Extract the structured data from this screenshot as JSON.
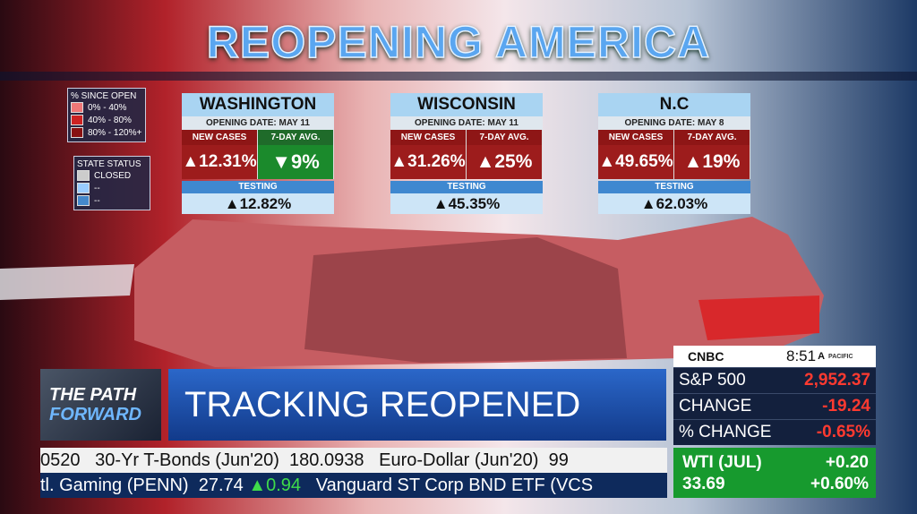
{
  "header": {
    "title": "REOPENING AMERICA"
  },
  "legend": {
    "title": "% SINCE OPEN",
    "items": [
      "0% - 40%",
      "40% - 80%",
      "80% - 120%+"
    ]
  },
  "status_legend": {
    "title": "STATE STATUS",
    "items": [
      "CLOSED",
      "--",
      "--"
    ]
  },
  "cards": [
    {
      "state": "WASHINGTON",
      "opening_date": "OPENING DATE: MAY 11",
      "new_cases_label": "NEW CASES",
      "new_cases": "▲12.31%",
      "avg_label": "7-DAY AVG.",
      "avg": "▼9%",
      "testing_label": "TESTING",
      "testing": "▲12.82%"
    },
    {
      "state": "WISCONSIN",
      "opening_date": "OPENING DATE: MAY 11",
      "new_cases_label": "NEW CASES",
      "new_cases": "▲31.26%",
      "avg_label": "7-DAY AVG.",
      "avg": "▲25%",
      "testing_label": "TESTING",
      "testing": "▲45.35%"
    },
    {
      "state": "N.C",
      "opening_date": "OPENING DATE: MAY 8",
      "new_cases_label": "NEW CASES",
      "new_cases": "▲49.65%",
      "avg_label": "7-DAY AVG.",
      "avg": "▲19%",
      "testing_label": "TESTING",
      "testing": "▲62.03%"
    }
  ],
  "banner": {
    "show_line1": "THE PATH",
    "show_line2": "FORWARD",
    "headline": "TRACKING REOPENED STATES"
  },
  "market": {
    "logo": "CNBC",
    "time": "8:51",
    "ampm": "A",
    "zone": "PACIFIC",
    "rows": [
      {
        "label": "S&P 500",
        "value": "2,952.37"
      },
      {
        "label": "CHANGE",
        "value": "-19.24"
      },
      {
        "label": "% CHANGE",
        "value": "-0.65%"
      }
    ]
  },
  "commodity": {
    "name": "WTI (JUL)",
    "price": "33.69",
    "change": "+0.20",
    "pct": "+0.60%"
  },
  "ticker": {
    "line1": "0520   30-Yr T-Bonds (Jun'20)  180.0938   Euro-Dollar (Jun'20)  99",
    "line2a": "tl. Gaming (PENN)  27.74",
    "line2b": "▲0.94",
    "line2c": "Vanguard ST Corp BND ETF (VCS"
  }
}
